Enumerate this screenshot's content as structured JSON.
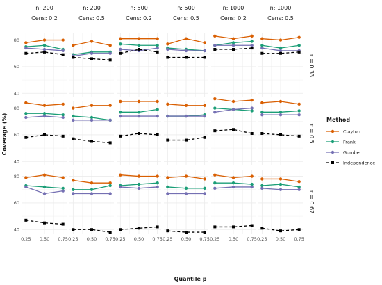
{
  "chart_data": {
    "type": "line",
    "xlabel": "Quantile p",
    "ylabel": "Coverage (%)",
    "x": [
      0.25,
      0.5,
      0.75
    ],
    "x_tick_labels": [
      "0.25",
      "0.50",
      "0.75"
    ],
    "y_ticks": [
      40,
      60,
      80
    ],
    "ylim": [
      37,
      85
    ],
    "grid": true,
    "legend": {
      "title": "Method",
      "position": "right"
    },
    "columns": [
      {
        "label": "n: 200",
        "cens": "Cens: 0.2"
      },
      {
        "label": "n: 200",
        "cens": "Cens: 0.5"
      },
      {
        "label": "n: 500",
        "cens": "Cens: 0.2"
      },
      {
        "label": "n: 500",
        "cens": "Cens: 0.5"
      },
      {
        "label": "n: 1000",
        "cens": "Cens: 0.2"
      },
      {
        "label": "n: 1000",
        "cens": "Cens: 0.5"
      }
    ],
    "rows": [
      {
        "label": "τ = 0.33"
      },
      {
        "label": "τ = 0.5"
      },
      {
        "label": "τ = 0.67"
      }
    ],
    "series": [
      {
        "name": "Clayton",
        "color": "#d95f02",
        "marker": "circle",
        "dash": false,
        "panels": [
          [
            [
              78,
              80,
              80
            ],
            [
              76,
              79,
              76
            ],
            [
              81,
              81,
              81
            ],
            [
              77,
              81,
              78
            ],
            [
              83,
              81,
              83
            ],
            [
              81,
              80,
              82
            ]
          ],
          [
            [
              84,
              82,
              83
            ],
            [
              80,
              82,
              82
            ],
            [
              85,
              85,
              85
            ],
            [
              83,
              82,
              82
            ],
            [
              87,
              85,
              86
            ],
            [
              84,
              85,
              83
            ]
          ],
          [
            [
              79,
              81,
              79
            ],
            [
              77,
              75,
              75
            ],
            [
              81,
              80,
              80
            ],
            [
              79,
              80,
              78
            ],
            [
              81,
              79,
              80
            ],
            [
              78,
              78,
              76
            ]
          ]
        ]
      },
      {
        "name": "Frank",
        "color": "#1b9e77",
        "marker": "circle",
        "dash": false,
        "panels": [
          [
            [
              75,
              76,
              73
            ],
            [
              69,
              71,
              71
            ],
            [
              77,
              76,
              76
            ],
            [
              74,
              73,
              72
            ],
            [
              76,
              78,
              79
            ],
            [
              76,
              74,
              76
            ]
          ],
          [
            [
              76,
              76,
              75
            ],
            [
              74,
              73,
              71
            ],
            [
              77,
              77,
              79
            ],
            [
              74,
              74,
              75
            ],
            [
              80,
              79,
              78
            ],
            [
              77,
              77,
              78
            ]
          ],
          [
            [
              73,
              72,
              71
            ],
            [
              70,
              70,
              73
            ],
            [
              73,
              74,
              75
            ],
            [
              72,
              71,
              71
            ],
            [
              75,
              75,
              74
            ],
            [
              73,
              74,
              72
            ]
          ]
        ]
      },
      {
        "name": "Gumbel",
        "color": "#7570b3",
        "marker": "circle",
        "dash": false,
        "panels": [
          [
            [
              74,
              73,
              72
            ],
            [
              68,
              70,
              70
            ],
            [
              73,
              72,
              74
            ],
            [
              73,
              72,
              72
            ],
            [
              76,
              76,
              76
            ],
            [
              74,
              72,
              72
            ]
          ],
          [
            [
              73,
              74,
              73
            ],
            [
              71,
              71,
              71
            ],
            [
              74,
              74,
              74
            ],
            [
              74,
              74,
              74
            ],
            [
              77,
              79,
              80
            ],
            [
              75,
              75,
              75
            ]
          ],
          [
            [
              72,
              67,
              69
            ],
            [
              67,
              67,
              67
            ],
            [
              72,
              71,
              72
            ],
            [
              67,
              67,
              67
            ],
            [
              71,
              72,
              72
            ],
            [
              71,
              70,
              70
            ]
          ]
        ]
      },
      {
        "name": "Independence",
        "color": "#000000",
        "marker": "square",
        "dash": true,
        "panels": [
          [
            [
              70,
              71,
              69
            ],
            [
              67,
              66,
              65
            ],
            [
              70,
              73,
              71
            ],
            [
              67,
              67,
              67
            ],
            [
              73,
              73,
              74
            ],
            [
              70,
              70,
              71
            ]
          ],
          [
            [
              58,
              60,
              59
            ],
            [
              57,
              55,
              54
            ],
            [
              59,
              61,
              60
            ],
            [
              56,
              56,
              58
            ],
            [
              63,
              64,
              61
            ],
            [
              61,
              60,
              59
            ]
          ],
          [
            [
              47,
              45,
              44
            ],
            [
              40,
              40,
              38
            ],
            [
              40,
              41,
              42
            ],
            [
              39,
              38,
              38
            ],
            [
              42,
              42,
              43
            ],
            [
              41,
              39,
              40
            ]
          ]
        ]
      }
    ]
  }
}
